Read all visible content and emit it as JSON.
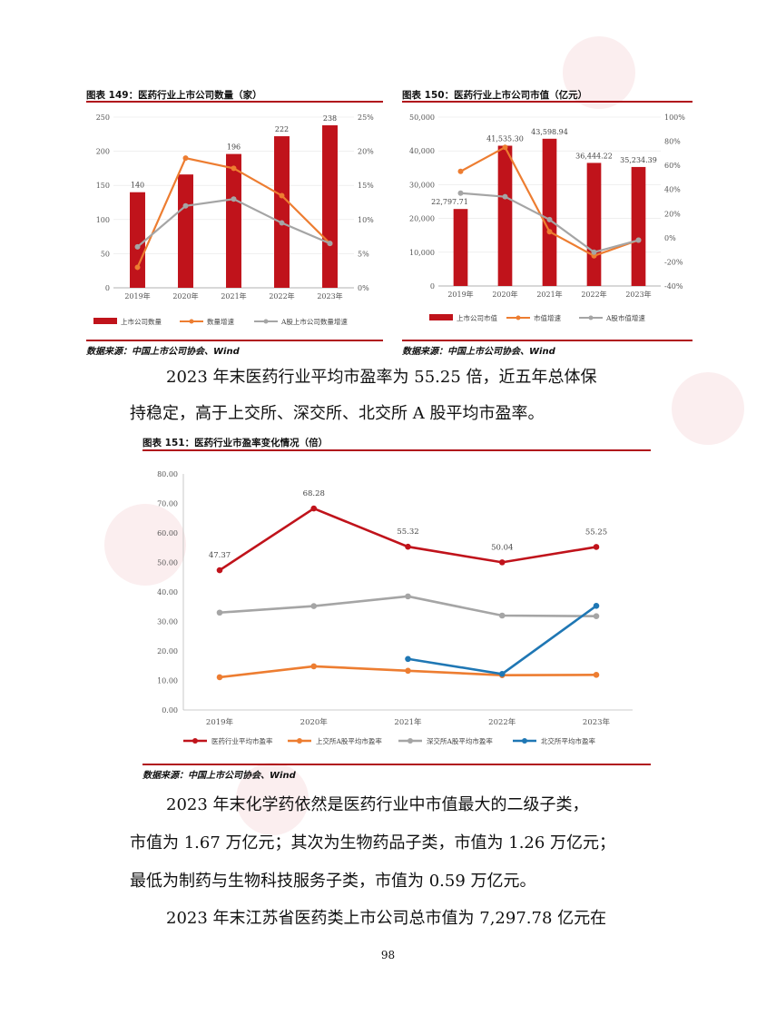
{
  "fig149": {
    "title": "图表 149：医药行业上市公司数量（家）",
    "source": "数据来源：中国上市公司协会、Wind",
    "chart_data": {
      "type": "bar",
      "categories": [
        "2019年",
        "2020年",
        "2021年",
        "2022年",
        "2023年"
      ],
      "series": [
        {
          "name": "上市公司数量",
          "type": "bar",
          "axis": "left",
          "values": [
            140,
            166,
            196,
            222,
            238
          ]
        },
        {
          "name": "数量增速",
          "type": "line",
          "axis": "right",
          "values": [
            3,
            19,
            17.5,
            13.5,
            6.5
          ]
        },
        {
          "name": "A股上市公司数量增速",
          "type": "line",
          "axis": "right",
          "values": [
            6,
            12,
            13,
            9.5,
            6.5
          ]
        }
      ],
      "data_labels": [
        "140",
        "",
        "196",
        "222",
        "238"
      ],
      "y_left_ticks": [
        "0",
        "50",
        "100",
        "150",
        "200",
        "250"
      ],
      "y_right_ticks": [
        "0%",
        "5%",
        "10%",
        "15%",
        "20%",
        "25%"
      ],
      "ylim_left": [
        0,
        250
      ],
      "ylim_right": [
        0,
        25
      ]
    }
  },
  "fig150": {
    "title": "图表 150：医药行业上市公司市值（亿元）",
    "source": "数据来源：中国上市公司协会、Wind",
    "chart_data": {
      "type": "bar",
      "categories": [
        "2019年",
        "2020年",
        "2021年",
        "2022年",
        "2023年"
      ],
      "series": [
        {
          "name": "上市公司市值",
          "type": "bar",
          "axis": "left",
          "values": [
            22797.71,
            41535.3,
            43598.94,
            36444.22,
            35234.39
          ]
        },
        {
          "name": "市值增速",
          "type": "line",
          "axis": "right",
          "values": [
            55,
            75,
            5,
            -15,
            -2
          ]
        },
        {
          "name": "A股市值增速",
          "type": "line",
          "axis": "right",
          "values": [
            37,
            34,
            15,
            -12,
            -2
          ]
        }
      ],
      "data_labels": [
        "22,797.71",
        "41,535.30",
        "43,598.94",
        "36,444.22",
        "35,234.39"
      ],
      "y_left_ticks": [
        "0",
        "10,000",
        "20,000",
        "30,000",
        "40,000",
        "50,000"
      ],
      "y_right_ticks": [
        "-40%",
        "-20%",
        "0%",
        "20%",
        "40%",
        "60%",
        "80%",
        "100%"
      ],
      "ylim_left": [
        0,
        50000
      ],
      "ylim_right": [
        -40,
        100
      ]
    }
  },
  "para1": {
    "line1": "2023 年末医药行业平均市盈率为 55.25 倍，近五年总体保",
    "line2": "持稳定，高于上交所、深交所、北交所 A 股平均市盈率。"
  },
  "fig151": {
    "title": "图表 151：医药行业市盈率变化情况（倍）",
    "source": "数据来源：中国上市公司协会、Wind",
    "chart_data": {
      "type": "line",
      "categories": [
        "2019年",
        "2020年",
        "2021年",
        "2022年",
        "2023年"
      ],
      "series": [
        {
          "name": "医药行业平均市盈率",
          "color": "#c0131b",
          "values": [
            47.37,
            68.28,
            55.32,
            50.04,
            55.25
          ]
        },
        {
          "name": "上交所A股平均市盈率",
          "color": "#ed7d31",
          "values": [
            11.1,
            14.8,
            13.3,
            11.8,
            11.9
          ]
        },
        {
          "name": "深交所A股平均市盈率",
          "color": "#a5a5a5",
          "values": [
            33.0,
            35.2,
            38.5,
            32.0,
            31.8
          ]
        },
        {
          "name": "北交所平均市盈率",
          "color": "#1f77b4",
          "values": [
            null,
            null,
            17.3,
            12.2,
            35.3
          ]
        }
      ],
      "data_labels": [
        "47.37",
        "68.28",
        "55.32",
        "50.04",
        "55.25"
      ],
      "y_ticks": [
        "0.00",
        "10.00",
        "20.00",
        "30.00",
        "40.00",
        "50.00",
        "60.00",
        "70.00",
        "80.00"
      ],
      "ylim": [
        0,
        80
      ]
    }
  },
  "para2": {
    "line1": "2023 年末化学药依然是医药行业中市值最大的二级子类，",
    "line2": "市值为 1.67 万亿元；其次为生物药品子类，市值为 1.26 万亿元；",
    "line3": "最低为制药与生物科技服务子类，市值为 0.59 万亿元。"
  },
  "para3": {
    "line1": "2023 年末江苏省医药类上市公司总市值为 7,297.78 亿元在"
  },
  "page_number": "98",
  "colors": {
    "bar_red": "#c0131b",
    "orange": "#ed7d31",
    "gray": "#a5a5a5",
    "blue": "#1f77b4",
    "rule_red": "#b0121b"
  }
}
